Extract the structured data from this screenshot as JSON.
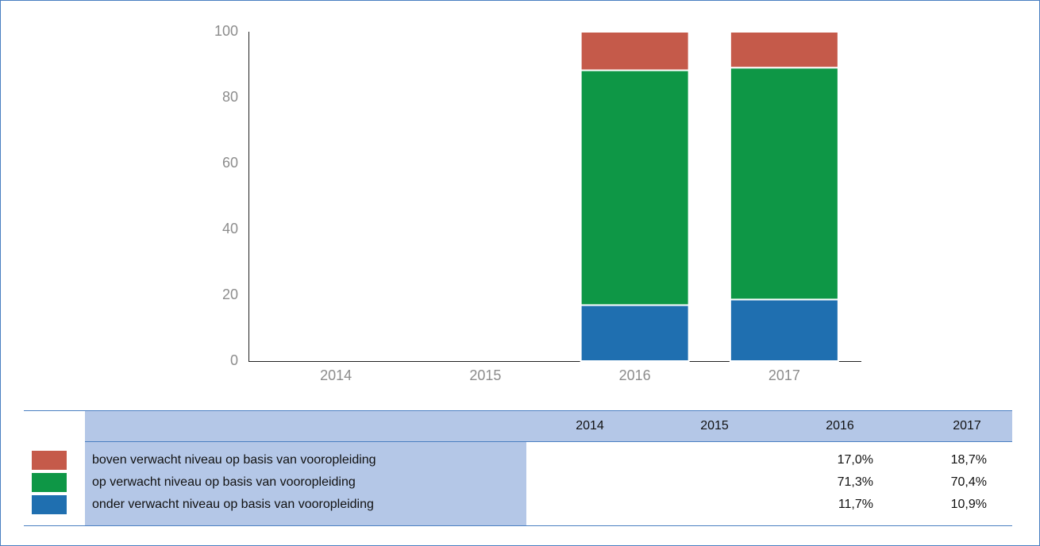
{
  "chart_data": {
    "type": "stacked_bar",
    "categories": [
      "2014",
      "2015",
      "2016",
      "2017"
    ],
    "series": [
      {
        "name": "boven verwacht niveau op basis van vooropleiding",
        "color": "#c55a4a",
        "values": [
          null,
          null,
          17.0,
          18.7
        ],
        "value_labels": [
          null,
          null,
          "17,0%",
          "18,7%"
        ]
      },
      {
        "name": "op verwacht niveau op basis van vooropleiding",
        "color": "#0e9746",
        "values": [
          null,
          null,
          71.3,
          70.4
        ],
        "value_labels": [
          null,
          null,
          "71,3%",
          "70,4%"
        ]
      },
      {
        "name": "onder verwacht niveau op basis van vooropleiding",
        "color": "#1f6fb0",
        "values": [
          null,
          null,
          11.7,
          10.9
        ],
        "value_labels": [
          null,
          null,
          "11,7%",
          "10,9%"
        ]
      }
    ],
    "bar_colors": [
      "#1f6fb0",
      "#0e9746",
      "#c55a4a"
    ],
    "ylim": [
      0,
      100
    ],
    "yticks": [
      0,
      20,
      40,
      60,
      80,
      100
    ]
  }
}
